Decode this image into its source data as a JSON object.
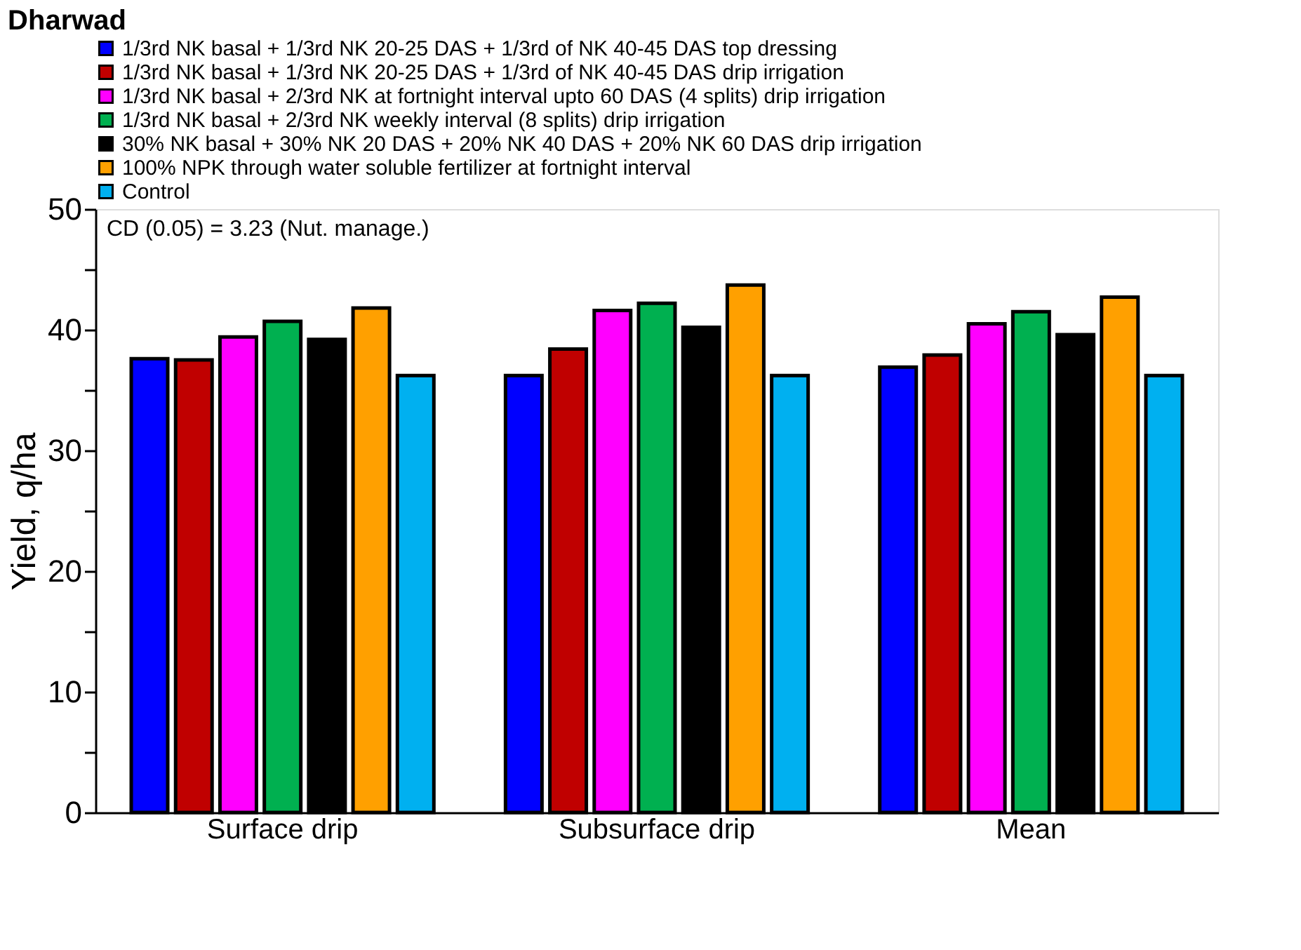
{
  "chart_data": {
    "type": "bar",
    "title": "Dharwad",
    "ylabel": "Yield, q/ha",
    "categories": [
      "Surface drip",
      "Subsurface drip",
      "Mean"
    ],
    "series": [
      {
        "name": "1/3rd NK basal + 1/3rd NK 20-25 DAS + 1/3rd of NK 40-45 DAS top dressing",
        "color": "#0000ff",
        "values": [
          37.6,
          36.2,
          36.9
        ]
      },
      {
        "name": "1/3rd NK basal + 1/3rd NK 20-25 DAS + 1/3rd of NK 40-45 DAS drip irrigation",
        "color": "#c00000",
        "values": [
          37.5,
          38.4,
          37.9
        ]
      },
      {
        "name": "1/3rd NK basal + 2/3rd NK at fortnight interval upto 60 DAS (4 splits) drip irrigation",
        "color": "#ff00ff",
        "values": [
          39.4,
          41.6,
          40.5
        ]
      },
      {
        "name": "1/3rd NK basal  + 2/3rd NK weekly interval (8 splits) drip irrigation",
        "color": "#00b050",
        "values": [
          40.7,
          42.2,
          41.5
        ]
      },
      {
        "name": "30% NK basal + 30% NK 20  DAS + 20% NK 40 DAS + 20% NK 60 DAS drip irrigation",
        "color": "#000000",
        "values": [
          39.2,
          40.2,
          39.6
        ]
      },
      {
        "name": "100% NPK through water soluble fertilizer at fortnight interval",
        "color": "#ffa000",
        "values": [
          41.8,
          43.7,
          42.7
        ]
      },
      {
        "name": "Control",
        "color": "#00b0f0",
        "values": [
          36.2,
          36.2,
          36.2
        ]
      }
    ],
    "ylim": [
      0,
      50
    ],
    "yticks": [
      0,
      {
        "value": 5,
        "label": null
      },
      10,
      {
        "value": 15,
        "label": null
      },
      20,
      {
        "value": 25,
        "label": null
      },
      30,
      {
        "value": 35,
        "label": null
      },
      40,
      {
        "value": 45,
        "label": null
      },
      50
    ],
    "annotations": [
      "CD (0.05) = 3.23 (Nut. manage.)"
    ],
    "grid": false,
    "legend": "top left"
  }
}
